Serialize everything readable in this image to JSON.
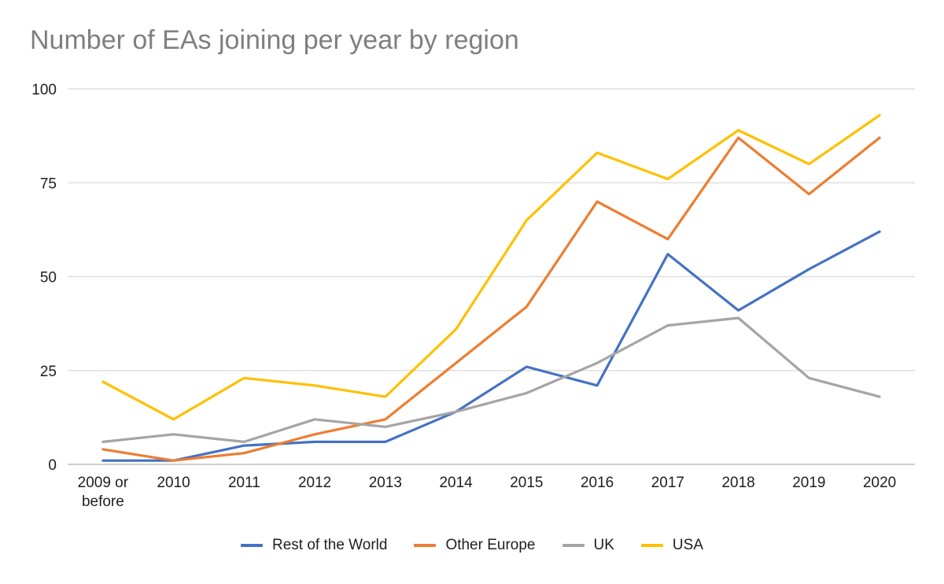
{
  "chart_data": {
    "type": "line",
    "title": "Number of EAs joining per year by region",
    "xlabel": "",
    "ylabel": "",
    "categories": [
      "2009 or before",
      "2010",
      "2011",
      "2012",
      "2013",
      "2014",
      "2015",
      "2016",
      "2017",
      "2018",
      "2019",
      "2020"
    ],
    "category_lines": [
      [
        "2009 or",
        "before"
      ],
      [
        "2010"
      ],
      [
        "2011"
      ],
      [
        "2012"
      ],
      [
        "2013"
      ],
      [
        "2014"
      ],
      [
        "2015"
      ],
      [
        "2016"
      ],
      [
        "2017"
      ],
      [
        "2018"
      ],
      [
        "2019"
      ],
      [
        "2020"
      ]
    ],
    "ylim": [
      0,
      100
    ],
    "yticks": [
      0,
      25,
      50,
      75,
      100
    ],
    "grid": true,
    "legend_position": "bottom",
    "series": [
      {
        "name": "Rest of the World",
        "color": "#4472c4",
        "values": [
          1,
          1,
          5,
          6,
          6,
          14,
          26,
          21,
          56,
          41,
          52,
          62
        ]
      },
      {
        "name": "Other Europe",
        "color": "#ed7d31",
        "values": [
          4,
          1,
          3,
          8,
          12,
          27,
          42,
          70,
          60,
          87,
          72,
          87
        ]
      },
      {
        "name": "UK",
        "color": "#a5a5a5",
        "values": [
          6,
          8,
          6,
          12,
          10,
          14,
          19,
          27,
          37,
          39,
          23,
          18
        ]
      },
      {
        "name": "USA",
        "color": "#ffc000",
        "values": [
          22,
          12,
          23,
          21,
          18,
          36,
          65,
          83,
          76,
          89,
          80,
          93
        ]
      }
    ]
  }
}
